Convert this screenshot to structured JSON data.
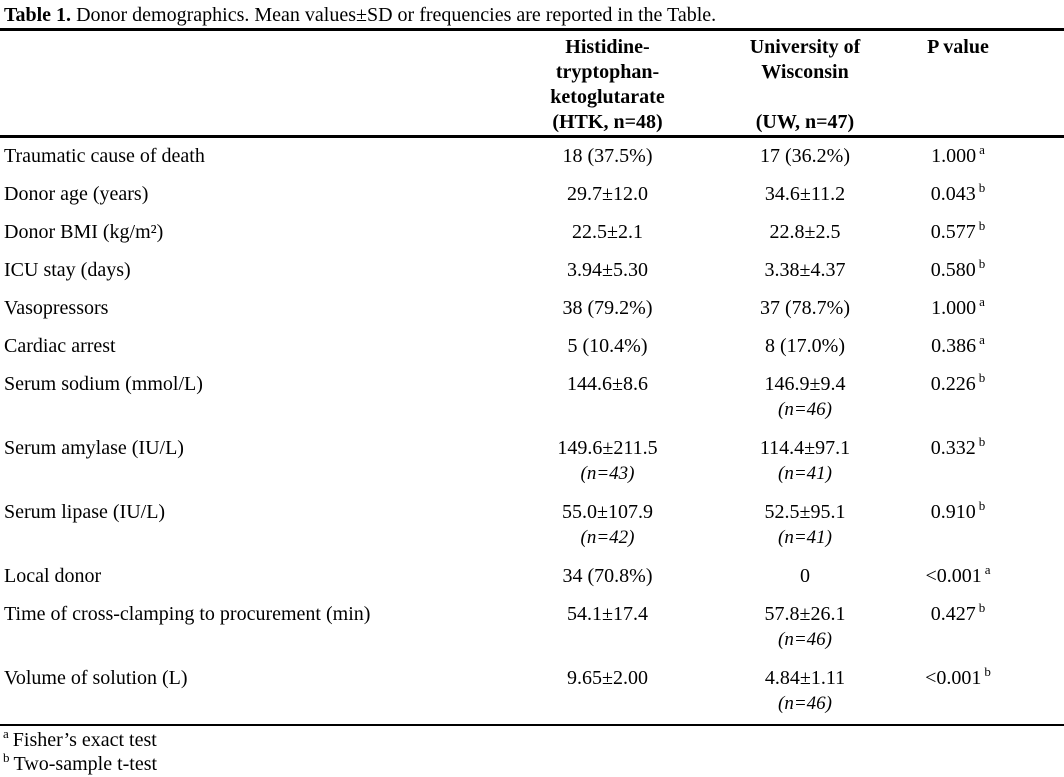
{
  "title": {
    "label": "Table 1.",
    "text": "Donor demographics. Mean values±SD or frequencies are reported in the Table."
  },
  "columns": [
    {
      "name_lines": "Histidine-\ntryptophan-\nketoglutarate",
      "sub": "(HTK, n=48)"
    },
    {
      "name_lines": "University of\nWisconsin",
      "sub": "(UW, n=47)"
    },
    {
      "name": "P value"
    }
  ],
  "rows": [
    {
      "label": "Traumatic cause of death",
      "htk": {
        "main": "18 (37.5%)",
        "n": null
      },
      "uw": {
        "main": "17 (36.2%)",
        "n": null
      },
      "p": {
        "value": "1.000",
        "sup": "a"
      }
    },
    {
      "label": "Donor age (years)",
      "htk": {
        "main": "29.7±12.0",
        "n": null
      },
      "uw": {
        "main": "34.6±11.2",
        "n": null
      },
      "p": {
        "value": "0.043",
        "sup": "b"
      }
    },
    {
      "label": "Donor BMI (kg/m²)",
      "htk": {
        "main": "22.5±2.1",
        "n": null
      },
      "uw": {
        "main": "22.8±2.5",
        "n": null
      },
      "p": {
        "value": "0.577",
        "sup": "b"
      }
    },
    {
      "label": "ICU stay (days)",
      "htk": {
        "main": "3.94±5.30",
        "n": null
      },
      "uw": {
        "main": "3.38±4.37",
        "n": null
      },
      "p": {
        "value": "0.580",
        "sup": "b"
      }
    },
    {
      "label": "Vasopressors",
      "htk": {
        "main": "38 (79.2%)",
        "n": null
      },
      "uw": {
        "main": "37 (78.7%)",
        "n": null
      },
      "p": {
        "value": "1.000",
        "sup": "a"
      }
    },
    {
      "label": "Cardiac arrest",
      "htk": {
        "main": "5 (10.4%)",
        "n": null
      },
      "uw": {
        "main": "8 (17.0%)",
        "n": null
      },
      "p": {
        "value": "0.386",
        "sup": "a"
      }
    },
    {
      "label": "Serum sodium (mmol/L)",
      "htk": {
        "main": "144.6±8.6",
        "n": null
      },
      "uw": {
        "main": "146.9±9.4",
        "n": "(n=46)"
      },
      "p": {
        "value": "0.226",
        "sup": "b"
      }
    },
    {
      "label": "Serum amylase (IU/L)",
      "htk": {
        "main": "149.6±211.5",
        "n": "(n=43)"
      },
      "uw": {
        "main": "114.4±97.1",
        "n": "(n=41)"
      },
      "p": {
        "value": "0.332",
        "sup": "b"
      }
    },
    {
      "label": "Serum lipase (IU/L)",
      "htk": {
        "main": "55.0±107.9",
        "n": "(n=42)"
      },
      "uw": {
        "main": "52.5±95.1",
        "n": "(n=41)"
      },
      "p": {
        "value": "0.910",
        "sup": "b"
      }
    },
    {
      "label": "Local donor",
      "htk": {
        "main": "34 (70.8%)",
        "n": null
      },
      "uw": {
        "main": "0",
        "n": null
      },
      "p": {
        "value": "<0.001",
        "sup": "a"
      }
    },
    {
      "label": "Time of cross-clamping to procurement (min)",
      "htk": {
        "main": "54.1±17.4",
        "n": null
      },
      "uw": {
        "main": "57.8±26.1",
        "n": "(n=46)"
      },
      "p": {
        "value": "0.427",
        "sup": "b"
      }
    },
    {
      "label": "Volume of solution (L)",
      "htk": {
        "main": "9.65±2.00",
        "n": null
      },
      "uw": {
        "main": "4.84±1.11",
        "n": "(n=46)"
      },
      "p": {
        "value": "<0.001",
        "sup": "b"
      }
    }
  ],
  "footnotes": [
    {
      "marker": "a",
      "text": "Fisher’s exact test"
    },
    {
      "marker": "b",
      "text": "Two-sample t-test"
    }
  ]
}
